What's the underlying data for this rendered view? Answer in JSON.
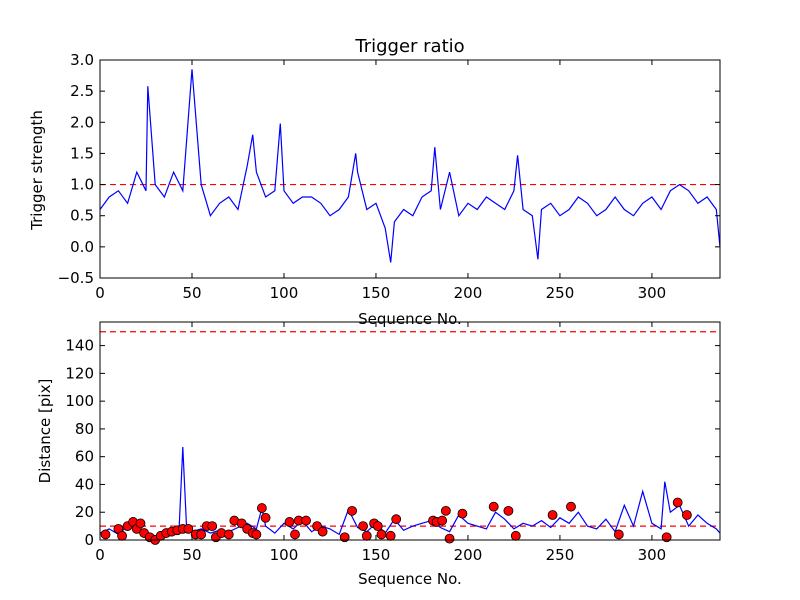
{
  "chart_data": [
    {
      "type": "line",
      "title": "Trigger ratio",
      "xlabel": "Sequence No.",
      "ylabel": "Trigger strength",
      "xlim": [
        0,
        337
      ],
      "ylim": [
        -0.5,
        3.0
      ],
      "xticks": [
        0,
        50,
        100,
        150,
        200,
        250,
        300
      ],
      "yticks": [
        -0.5,
        0.0,
        0.5,
        1.0,
        1.5,
        2.0,
        2.5,
        3.0
      ],
      "xtick_labels": [
        "0",
        "50",
        "100",
        "150",
        "200",
        "250",
        "300"
      ],
      "ytick_labels": [
        "−0.5",
        "0.0",
        "0.5",
        "1.0",
        "1.5",
        "2.0",
        "2.5",
        "3.0"
      ],
      "grid": false,
      "hlines": [
        {
          "y": 1.0,
          "color": "#ff0000",
          "style": "dashed"
        }
      ],
      "series": [
        {
          "name": "Trigger strength",
          "color": "#0000ff",
          "x": [
            0,
            5,
            10,
            15,
            20,
            25,
            26,
            30,
            35,
            40,
            45,
            50,
            55,
            60,
            65,
            70,
            75,
            80,
            83,
            85,
            90,
            95,
            98,
            100,
            105,
            110,
            115,
            120,
            125,
            130,
            135,
            139,
            140,
            145,
            150,
            155,
            158,
            160,
            165,
            170,
            175,
            180,
            182,
            185,
            190,
            195,
            200,
            205,
            210,
            215,
            220,
            225,
            227,
            230,
            235,
            238,
            240,
            245,
            250,
            255,
            260,
            265,
            270,
            275,
            280,
            285,
            290,
            295,
            300,
            305,
            310,
            315,
            320,
            325,
            330,
            335,
            337
          ],
          "values": [
            0.6,
            0.8,
            0.9,
            0.7,
            1.2,
            0.9,
            2.58,
            1.0,
            0.8,
            1.2,
            0.9,
            2.85,
            1.0,
            0.5,
            0.7,
            0.8,
            0.6,
            1.3,
            1.8,
            1.2,
            0.8,
            0.9,
            1.98,
            0.9,
            0.7,
            0.8,
            0.8,
            0.7,
            0.5,
            0.6,
            0.8,
            1.5,
            1.2,
            0.6,
            0.7,
            0.3,
            -0.25,
            0.4,
            0.6,
            0.5,
            0.8,
            0.9,
            1.6,
            0.6,
            1.2,
            0.5,
            0.7,
            0.6,
            0.8,
            0.7,
            0.6,
            0.9,
            1.47,
            0.6,
            0.5,
            -0.2,
            0.6,
            0.7,
            0.5,
            0.6,
            0.8,
            0.7,
            0.5,
            0.6,
            0.8,
            0.6,
            0.5,
            0.7,
            0.8,
            0.6,
            0.9,
            1.0,
            0.9,
            0.7,
            0.8,
            0.6,
            0.0
          ]
        }
      ]
    },
    {
      "type": "line",
      "title": "",
      "xlabel": "Sequence No.",
      "ylabel": "Distance [pix]",
      "xlim": [
        0,
        337
      ],
      "ylim": [
        0,
        157
      ],
      "xticks": [
        0,
        50,
        100,
        150,
        200,
        250,
        300
      ],
      "yticks": [
        0,
        20,
        40,
        60,
        80,
        100,
        120,
        140
      ],
      "xtick_labels": [
        "0",
        "50",
        "100",
        "150",
        "200",
        "250",
        "300"
      ],
      "ytick_labels": [
        "0",
        "20",
        "40",
        "60",
        "80",
        "100",
        "120",
        "140"
      ],
      "grid": false,
      "hlines": [
        {
          "y": 150,
          "color": "#ff0000",
          "style": "dashed"
        },
        {
          "y": 10,
          "color": "#ff0000",
          "style": "dashed"
        }
      ],
      "series": [
        {
          "name": "Distance",
          "color": "#0000ff",
          "x": [
            0,
            5,
            10,
            15,
            20,
            25,
            30,
            35,
            40,
            43,
            45,
            47,
            50,
            55,
            60,
            65,
            70,
            75,
            80,
            85,
            88,
            90,
            95,
            100,
            105,
            110,
            115,
            120,
            125,
            130,
            135,
            140,
            145,
            150,
            155,
            160,
            165,
            170,
            175,
            180,
            185,
            190,
            195,
            200,
            205,
            210,
            215,
            220,
            225,
            230,
            235,
            240,
            245,
            250,
            255,
            260,
            265,
            270,
            275,
            280,
            285,
            290,
            295,
            300,
            305,
            307,
            310,
            315,
            320,
            325,
            330,
            335,
            337
          ],
          "values": [
            5,
            8,
            4,
            10,
            9,
            6,
            3,
            5,
            7,
            8,
            67,
            10,
            6,
            8,
            5,
            7,
            6,
            9,
            12,
            8,
            23,
            10,
            5,
            12,
            8,
            14,
            6,
            10,
            8,
            4,
            22,
            9,
            6,
            12,
            5,
            15,
            7,
            10,
            12,
            14,
            9,
            6,
            18,
            12,
            10,
            8,
            20,
            15,
            8,
            12,
            10,
            14,
            9,
            16,
            12,
            20,
            10,
            8,
            15,
            6,
            25,
            10,
            35,
            12,
            8,
            42,
            20,
            25,
            10,
            18,
            12,
            8,
            5
          ]
        },
        {
          "name": "Points",
          "color": "#ff0000",
          "marker": "circle",
          "x": [
            3,
            10,
            12,
            15,
            18,
            20,
            22,
            24,
            27,
            30,
            33,
            36,
            39,
            42,
            45,
            48,
            52,
            55,
            58,
            61,
            63,
            66,
            70,
            73,
            77,
            80,
            83,
            85,
            88,
            90,
            103,
            106,
            108,
            112,
            118,
            121,
            133,
            137,
            143,
            145,
            149,
            151,
            153,
            158,
            161,
            181,
            183,
            186,
            188,
            190,
            197,
            214,
            222,
            226,
            246,
            256,
            282,
            308,
            314,
            319
          ],
          "values": [
            4,
            8,
            3,
            10,
            13,
            8,
            12,
            5,
            2,
            0,
            3,
            5,
            6,
            7,
            8,
            8,
            4,
            4,
            10,
            10,
            2,
            5,
            4,
            14,
            12,
            8,
            5,
            4,
            23,
            16,
            13,
            4,
            14,
            14,
            10,
            6,
            2,
            21,
            10,
            3,
            12,
            10,
            4,
            3,
            15,
            14,
            13,
            14,
            21,
            1,
            19,
            24,
            21,
            3,
            18,
            24,
            4,
            2,
            27,
            18
          ]
        }
      ]
    }
  ]
}
